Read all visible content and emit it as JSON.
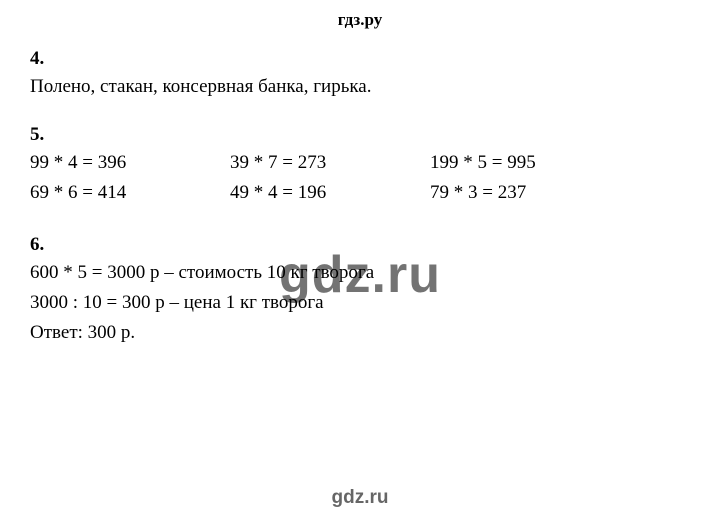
{
  "header": "гдз.ру",
  "watermark_large": "gdz.ru",
  "watermark_small": "gdz.ru",
  "section4": {
    "num": "4.",
    "text": "Полено, стакан, консервная банка, гирька."
  },
  "section5": {
    "num": "5.",
    "rows": [
      [
        "99 * 4 = 396",
        "39 * 7 = 273",
        "199 * 5 = 995"
      ],
      [
        "69 * 6 = 414",
        "49 * 4 = 196",
        "79 * 3 = 237"
      ]
    ]
  },
  "section6": {
    "num": "6.",
    "line1": "600 * 5 = 3000 р – стоимость 10 кг творога",
    "line2": "3000 : 10 = 300 р – цена 1 кг творога",
    "answer": "Ответ: 300 р."
  }
}
